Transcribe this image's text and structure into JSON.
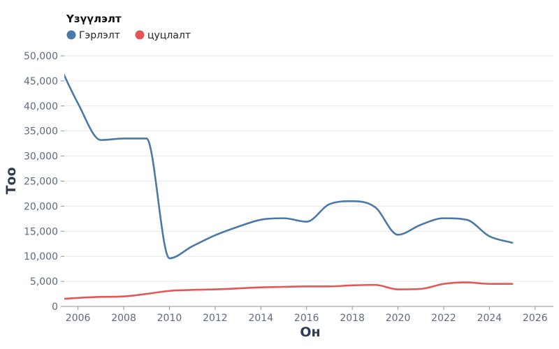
{
  "chart_data": {
    "type": "line",
    "xlabel": "Он",
    "ylabel": "Тоо",
    "xlim": [
      2005.4,
      2026.8
    ],
    "ylim": [
      0,
      50000
    ],
    "x_ticks": [
      2006,
      2008,
      2010,
      2012,
      2014,
      2016,
      2018,
      2020,
      2022,
      2024,
      2026
    ],
    "y_ticks": [
      0,
      5000,
      10000,
      15000,
      20000,
      25000,
      30000,
      35000,
      40000,
      45000,
      50000
    ],
    "y_tick_labels": [
      "0",
      "5,000",
      "10,000",
      "15,000",
      "20,000",
      "25,000",
      "30,000",
      "35,000",
      "40,000",
      "45,000",
      "50,000"
    ],
    "grid": true,
    "legend": {
      "title": "Үзүүлэлт",
      "placement": "top-left"
    },
    "x": [
      2005,
      2006,
      2007,
      2008,
      2009,
      2010,
      2011,
      2012,
      2013,
      2014,
      2015,
      2016,
      2017,
      2018,
      2019,
      2020,
      2021,
      2022,
      2023,
      2024,
      2025
    ],
    "series": [
      {
        "name": "Гэрлэлт",
        "color": "#4c78a8",
        "values": [
          50000,
          40500,
          33200,
          33500,
          33500,
          9600,
          12000,
          14200,
          15900,
          17300,
          17600,
          16900,
          20400,
          21000,
          19800,
          14300,
          16300,
          17600,
          17300,
          14000,
          12700
        ]
      },
      {
        "name": "цуцлалт",
        "color": "#e45756",
        "values": [
          1400,
          1700,
          1900,
          2000,
          2500,
          3100,
          3300,
          3400,
          3600,
          3800,
          3900,
          4000,
          4000,
          4200,
          4300,
          3400,
          3500,
          4500,
          4800,
          4500,
          4500
        ]
      }
    ]
  }
}
